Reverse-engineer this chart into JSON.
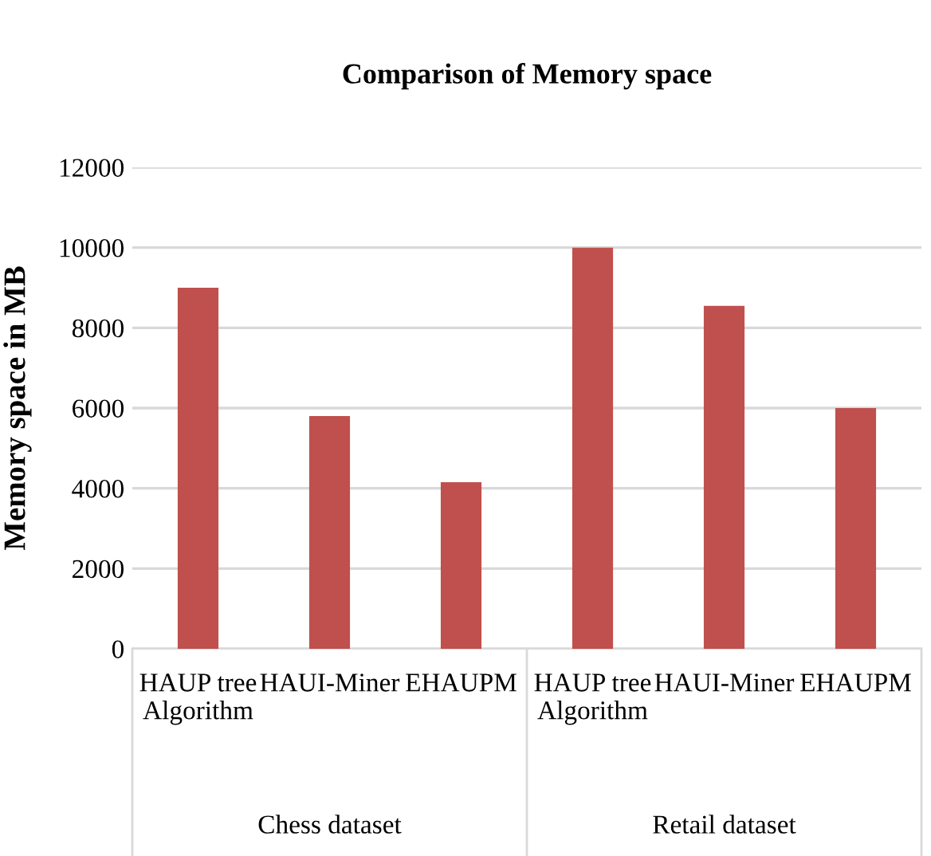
{
  "chart_data": {
    "type": "bar",
    "title": "Comparison of Memory space",
    "ylabel": "Memory space in MB",
    "categories": [
      "HAUP tree Algorithm",
      "HAUI-Miner",
      "EHAUPM",
      "HAUP tree Algorithm",
      "HAUI-Miner",
      "EHAUPM"
    ],
    "values": [
      9000,
      5800,
      4150,
      10000,
      8550,
      6000
    ],
    "color": "#c0504d",
    "ylim": [
      0,
      12000
    ],
    "yticks": [
      0,
      2000,
      4000,
      6000,
      8000,
      10000,
      12000
    ],
    "grid": "y",
    "annotations": [
      "Chess dataset",
      "Retail dataset"
    ]
  }
}
